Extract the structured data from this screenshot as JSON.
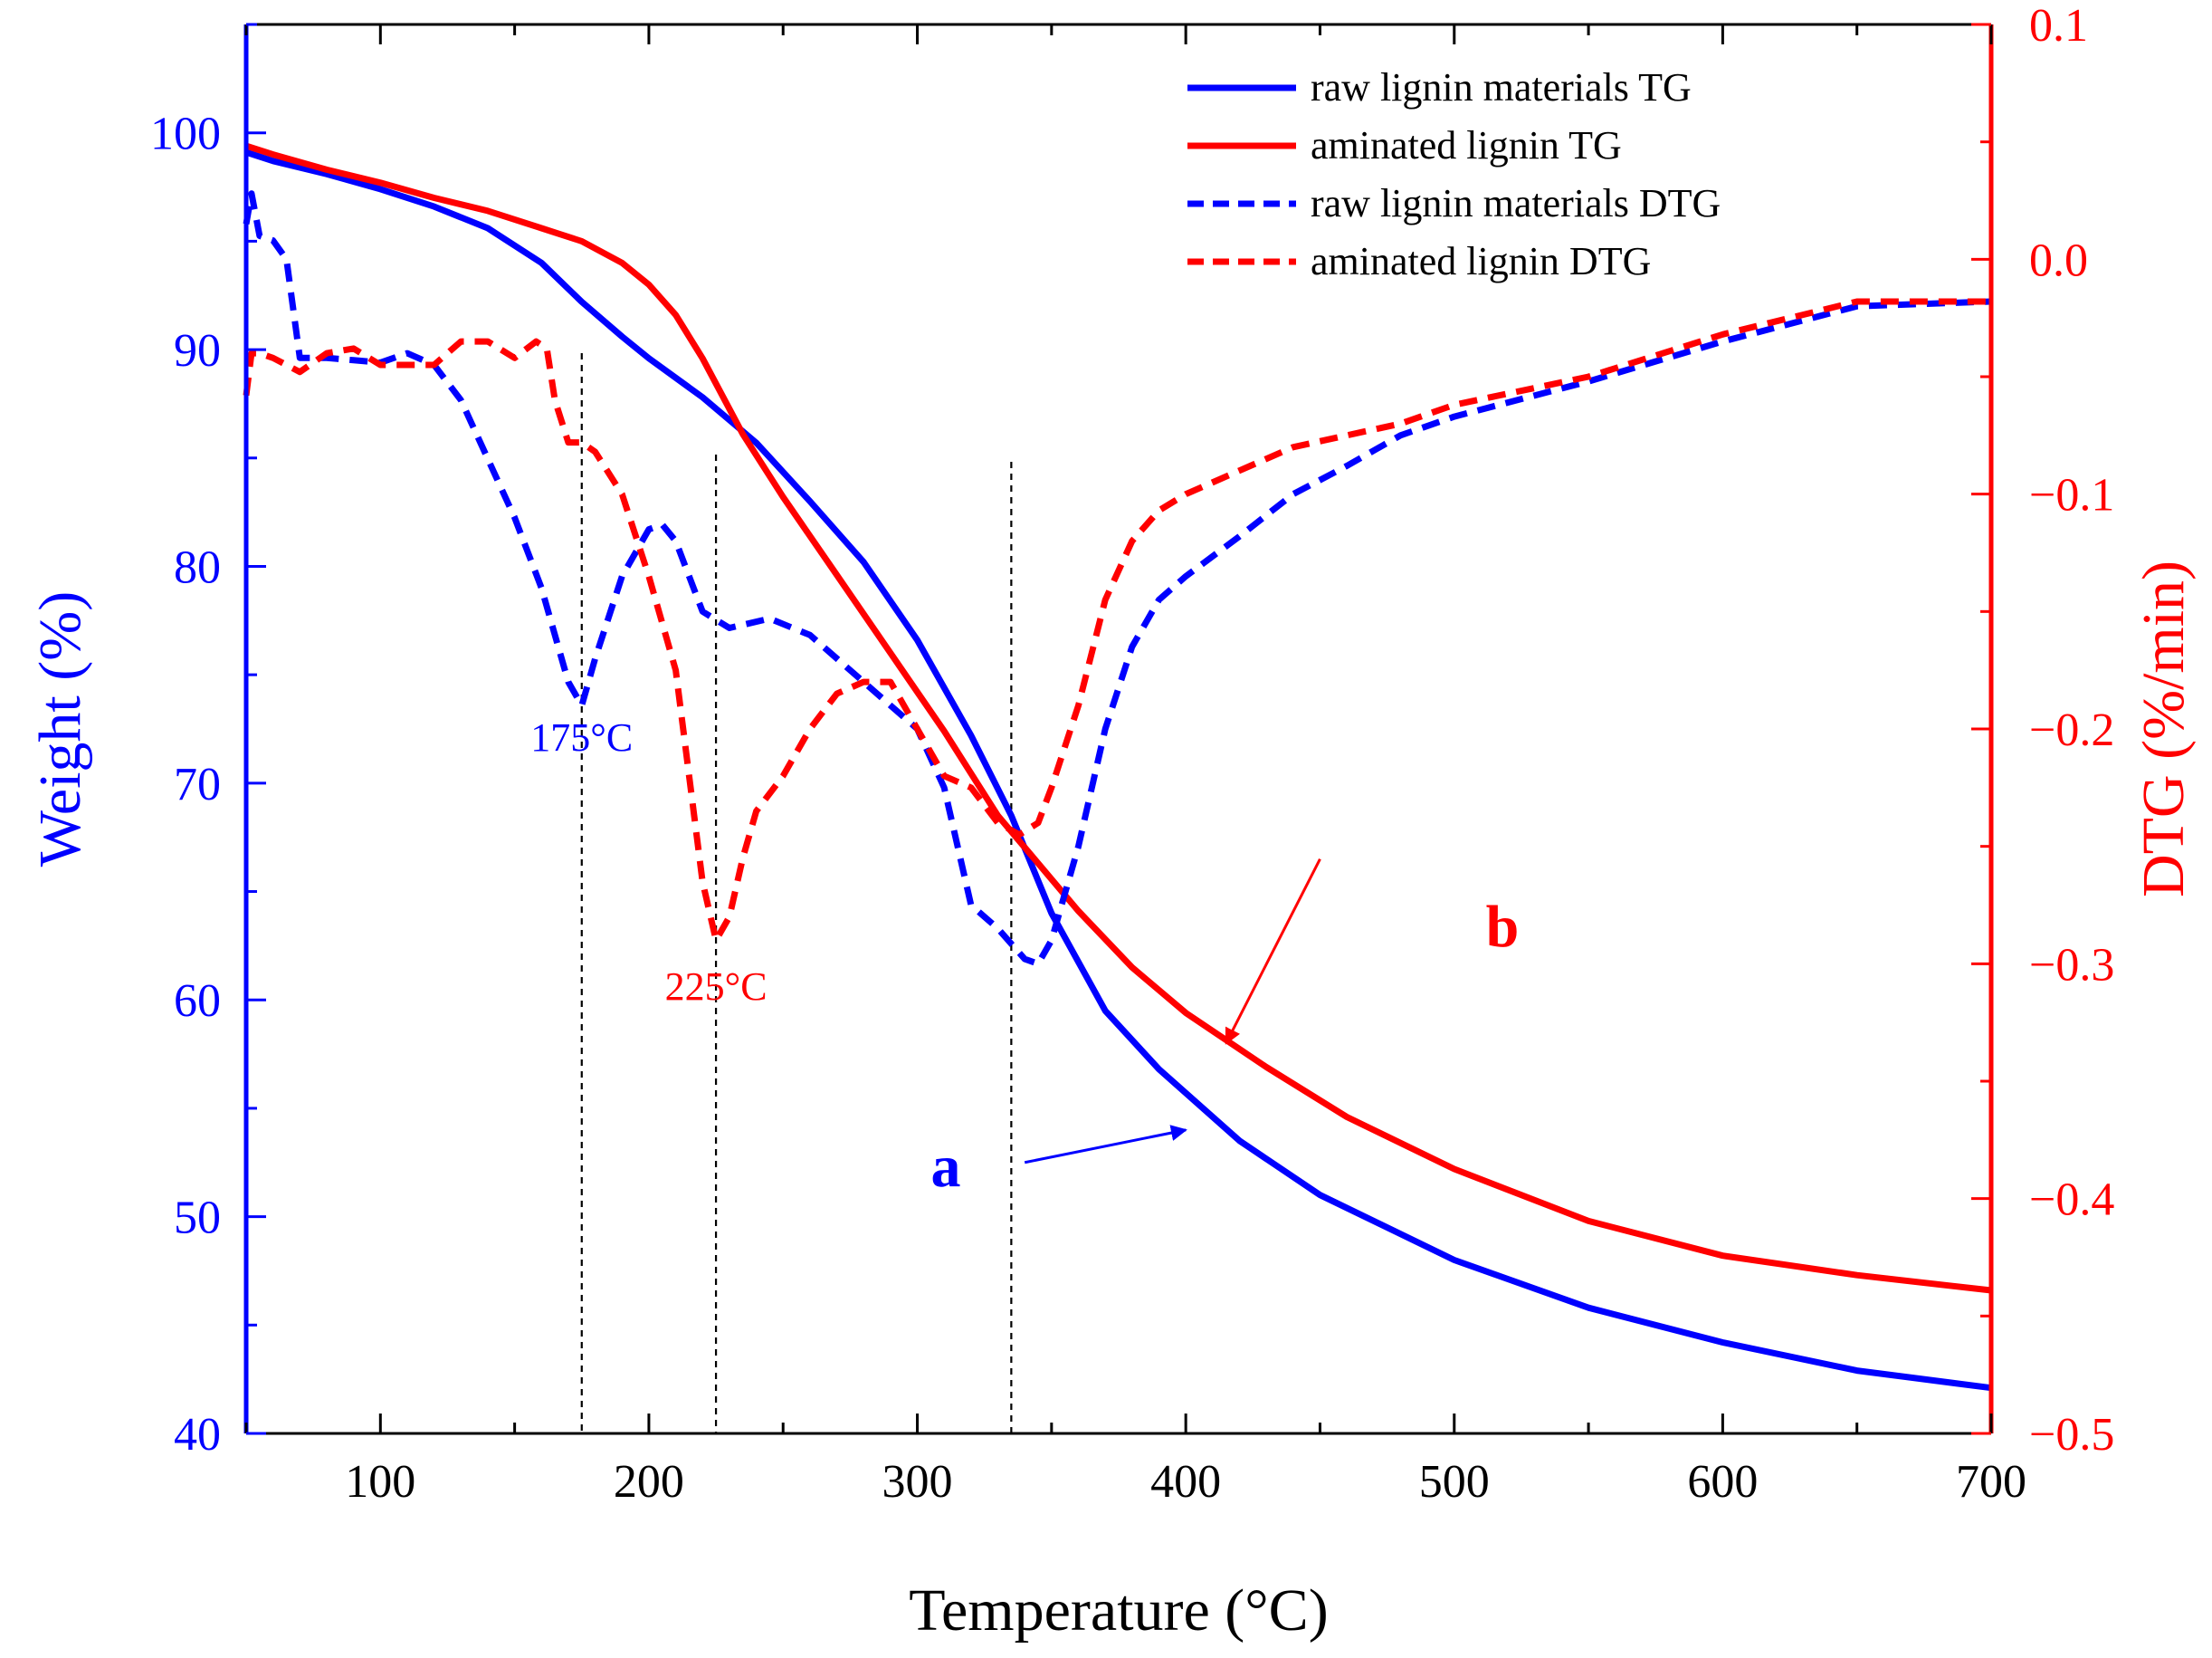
{
  "chart_data": {
    "type": "line",
    "title": "",
    "xlabel": "Temperature (°C)",
    "ylabel_left": "Weight (%)",
    "ylabel_right": "DTG (%/min)",
    "xlim": [
      50,
      700
    ],
    "ylim_left": [
      40,
      105
    ],
    "ylim_right": [
      -0.5,
      0.1
    ],
    "x_ticks": [
      100,
      200,
      300,
      400,
      500,
      600,
      700
    ],
    "y_left_ticks": [
      40,
      50,
      60,
      70,
      80,
      90,
      100
    ],
    "y_right_ticks": [
      -0.5,
      -0.4,
      -0.3,
      -0.2,
      -0.1,
      0.0,
      0.1
    ],
    "y_right_tick_labels": [
      "−0.5",
      "−0.4",
      "−0.3",
      "−0.2",
      "−0.1",
      "0.0",
      "0.1"
    ],
    "grid": false,
    "legend_position": "top-right",
    "colors": {
      "raw": "#0000ff",
      "aminated": "#ff0000",
      "axis_left": "#0000ff",
      "axis_right": "#ff0000",
      "guide": "#000000"
    },
    "series": [
      {
        "name": "raw lignin materials TG",
        "axis": "left",
        "style": "solid",
        "color": "#0000ff",
        "x": [
          50,
          60,
          80,
          100,
          120,
          140,
          160,
          175,
          190,
          200,
          220,
          240,
          260,
          280,
          300,
          320,
          335,
          350,
          370,
          390,
          420,
          450,
          500,
          550,
          600,
          650,
          700
        ],
        "y": [
          99.1,
          98.7,
          98.1,
          97.4,
          96.6,
          95.6,
          94.0,
          92.2,
          90.6,
          89.6,
          87.8,
          85.7,
          83.0,
          80.2,
          76.6,
          72.2,
          68.5,
          64.0,
          59.5,
          56.8,
          53.5,
          51.0,
          48.0,
          45.8,
          44.2,
          42.9,
          42.1
        ]
      },
      {
        "name": "aminated lignin TG",
        "axis": "left",
        "style": "solid",
        "color": "#ff0000",
        "x": [
          50,
          60,
          80,
          100,
          120,
          140,
          160,
          175,
          190,
          200,
          210,
          220,
          235,
          250,
          270,
          290,
          310,
          330,
          345,
          360,
          380,
          400,
          430,
          460,
          500,
          550,
          600,
          650,
          700
        ],
        "y": [
          99.4,
          99.0,
          98.3,
          97.7,
          97.0,
          96.4,
          95.6,
          95.0,
          94.0,
          93.0,
          91.6,
          89.6,
          86.1,
          83.2,
          79.6,
          76.0,
          72.4,
          68.5,
          66.3,
          64.1,
          61.5,
          59.4,
          56.9,
          54.6,
          52.2,
          49.8,
          48.2,
          47.3,
          46.6
        ]
      },
      {
        "name": "raw lignin materials DTG",
        "axis": "right",
        "style": "dashed",
        "color": "#0000ff",
        "x": [
          50,
          52,
          55,
          60,
          65,
          70,
          80,
          90,
          100,
          110,
          120,
          130,
          140,
          150,
          160,
          170,
          175,
          180,
          190,
          200,
          205,
          210,
          220,
          230,
          245,
          260,
          280,
          300,
          310,
          320,
          330,
          340,
          345,
          350,
          360,
          370,
          380,
          390,
          400,
          420,
          440,
          460,
          480,
          500,
          550,
          600,
          650,
          700
        ],
        "y": [
          0.015,
          0.028,
          0.01,
          0.008,
          0.0,
          -0.042,
          -0.042,
          -0.043,
          -0.044,
          -0.04,
          -0.045,
          -0.06,
          -0.085,
          -0.11,
          -0.14,
          -0.18,
          -0.19,
          -0.17,
          -0.135,
          -0.115,
          -0.113,
          -0.12,
          -0.15,
          -0.157,
          -0.153,
          -0.16,
          -0.18,
          -0.2,
          -0.225,
          -0.275,
          -0.285,
          -0.298,
          -0.3,
          -0.29,
          -0.25,
          -0.2,
          -0.165,
          -0.145,
          -0.135,
          -0.118,
          -0.1,
          -0.088,
          -0.075,
          -0.067,
          -0.052,
          -0.035,
          -0.02,
          -0.018
        ]
      },
      {
        "name": "aminated lignin DTG",
        "axis": "right",
        "style": "dashed",
        "color": "#ff0000",
        "x": [
          50,
          52,
          55,
          60,
          65,
          70,
          80,
          90,
          100,
          110,
          120,
          130,
          140,
          150,
          158,
          162,
          165,
          170,
          175,
          180,
          190,
          200,
          210,
          215,
          220,
          225,
          230,
          235,
          240,
          250,
          260,
          270,
          280,
          290,
          300,
          310,
          320,
          330,
          338,
          345,
          350,
          360,
          370,
          380,
          390,
          400,
          420,
          440,
          460,
          480,
          500,
          550,
          600,
          650,
          700
        ],
        "y": [
          -0.058,
          -0.04,
          -0.04,
          -0.042,
          -0.045,
          -0.048,
          -0.04,
          -0.038,
          -0.045,
          -0.045,
          -0.045,
          -0.035,
          -0.035,
          -0.042,
          -0.035,
          -0.038,
          -0.06,
          -0.078,
          -0.078,
          -0.082,
          -0.1,
          -0.135,
          -0.175,
          -0.22,
          -0.265,
          -0.29,
          -0.28,
          -0.255,
          -0.235,
          -0.22,
          -0.2,
          -0.185,
          -0.18,
          -0.18,
          -0.2,
          -0.22,
          -0.225,
          -0.24,
          -0.245,
          -0.24,
          -0.225,
          -0.19,
          -0.145,
          -0.12,
          -0.107,
          -0.1,
          -0.09,
          -0.08,
          -0.075,
          -0.07,
          -0.062,
          -0.05,
          -0.032,
          -0.018,
          -0.018
        ]
      }
    ],
    "guide_lines_x": [
      175,
      225,
      335
    ],
    "annotations": [
      {
        "text": "175°C",
        "x": 175,
        "y": 71.5,
        "axis": "left",
        "color": "#0000ff"
      },
      {
        "text": "225°C",
        "x": 225,
        "y": 60.0,
        "axis": "left",
        "color": "#ff0000"
      }
    ],
    "markers": [
      {
        "text": "a",
        "color": "#0000ff",
        "from": [
          340,
          52.5
        ],
        "to": [
          400,
          54.0
        ]
      },
      {
        "text": "b",
        "color": "#ff0000",
        "from": [
          450,
          66.5
        ],
        "to": [
          415,
          58.0
        ]
      }
    ]
  }
}
